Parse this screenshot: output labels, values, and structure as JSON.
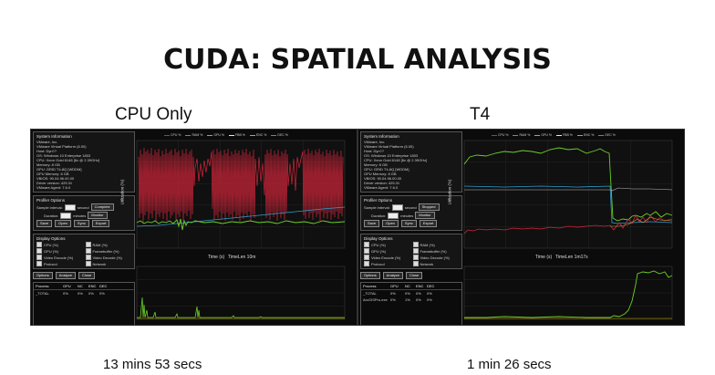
{
  "slide": {
    "title": "CUDA:  SPATIAL ANALYSIS",
    "left_label": "CPU Only",
    "right_label": "T4",
    "left_time": "13 mins 53 secs",
    "right_time": "1 min 26 secs"
  },
  "panels": [
    {
      "sysinfo": {
        "title": "System Information",
        "lines": [
          "VMware, Inc.",
          "VMware Virtual Platform (6.00)",
          "Host: Dyn??",
          "OS: Windows 10 Enterprise 1803",
          "CPU: Xeon Gold 6148 [6c @ 2.39GHz]",
          "Memory: 8 GB",
          "GPU: GRID T4-8Q [WDDM]",
          "GPU Memory: 8 GB",
          "VBIOS: 90.04.96.00.00",
          "Driver version: 425.31",
          "VMware Agent: 7.6.0"
        ]
      },
      "profiler": {
        "title": "Profiler Options",
        "sample_label": "Sample interval:",
        "sample_value": "1",
        "sample_unit": "second",
        "status_button": "Complete",
        "duration_label": "Duration:",
        "duration_unit": "minutes",
        "duration_button": "Monitor",
        "actions": [
          "Save",
          "Open",
          "Sync",
          "Export"
        ]
      },
      "display": {
        "title": "Display Options",
        "options": [
          "CPU (%)",
          "RAM (%)",
          "GPU (%)",
          "Framebuffer (%)",
          "Video Encode (%)",
          "Video Decode (%)",
          "Protocol",
          "Network"
        ]
      },
      "bottom_buttons": [
        "Options",
        "Analyze",
        "Close"
      ],
      "process": {
        "headers": [
          "Process",
          "GPU",
          "NC",
          "ENC",
          "DEC"
        ],
        "rows": [
          [
            "_TOTAL",
            "0%",
            "0%",
            "0%",
            "0%"
          ]
        ]
      },
      "top_chart": {
        "legend": [
          "CPU %",
          "RAM %",
          "GPU %",
          "FBB %",
          "ENC %",
          "DEC %"
        ],
        "xlabel": "Time (s)",
        "timelen": "TimeLen 10m",
        "ylabel": "Utilization (%)"
      }
    },
    {
      "sysinfo": {
        "title": "System Information",
        "lines": [
          "VMware, Inc.",
          "VMware Virtual Platform (6.00)",
          "Host: Dyn??",
          "OS: Windows 10 Enterprise 1803",
          "CPU: Xeon Gold 6148 [6c @ 2.39GHz]",
          "Memory: 8 GB",
          "GPU: GRID T4-8Q [WDDM]",
          "GPU Memory: 8 GB",
          "VBIOS: 90.04.96.00.00",
          "Driver version: 425.31",
          "VMware Agent: 7.6.0"
        ]
      },
      "profiler": {
        "title": "Profiler Options",
        "sample_label": "Sample interval:",
        "sample_value": "1",
        "sample_unit": "second",
        "status_button": "Stopped",
        "duration_label": "Duration:",
        "duration_unit": "minutes",
        "duration_button": "Monitor",
        "actions": [
          "Save",
          "Open",
          "Sync",
          "Export"
        ]
      },
      "display": {
        "title": "Display Options",
        "options": [
          "CPU (%)",
          "RAM (%)",
          "GPU (%)",
          "Framebuffer (%)",
          "Video Encode (%)",
          "Video Decode (%)",
          "Protocol",
          "Network"
        ]
      },
      "bottom_buttons": [
        "Options",
        "Analyze",
        "Close"
      ],
      "process": {
        "headers": [
          "Process",
          "GPU",
          "NC",
          "ENC",
          "DEC"
        ],
        "rows": [
          [
            "_TOTAL",
            "0%",
            "0%",
            "0%",
            "0%"
          ],
          [
            "ArcGISPro.exe",
            "0%",
            "1%",
            "0%",
            "0%"
          ]
        ]
      },
      "top_chart": {
        "legend": [
          "CPU %",
          "RAM %",
          "GPU %",
          "FBB %",
          "ENC %",
          "DEC %"
        ],
        "xlabel": "Time (s)",
        "timelen": "TimeLen 1m17s",
        "ylabel": "Utilization (%)"
      }
    }
  ],
  "colors": {
    "cpu": "#d2253a",
    "ram": "#2f9fd0",
    "gpu": "#6ccf2a",
    "fbb": "#e8e8e8",
    "grid": "#2a2a2a"
  }
}
